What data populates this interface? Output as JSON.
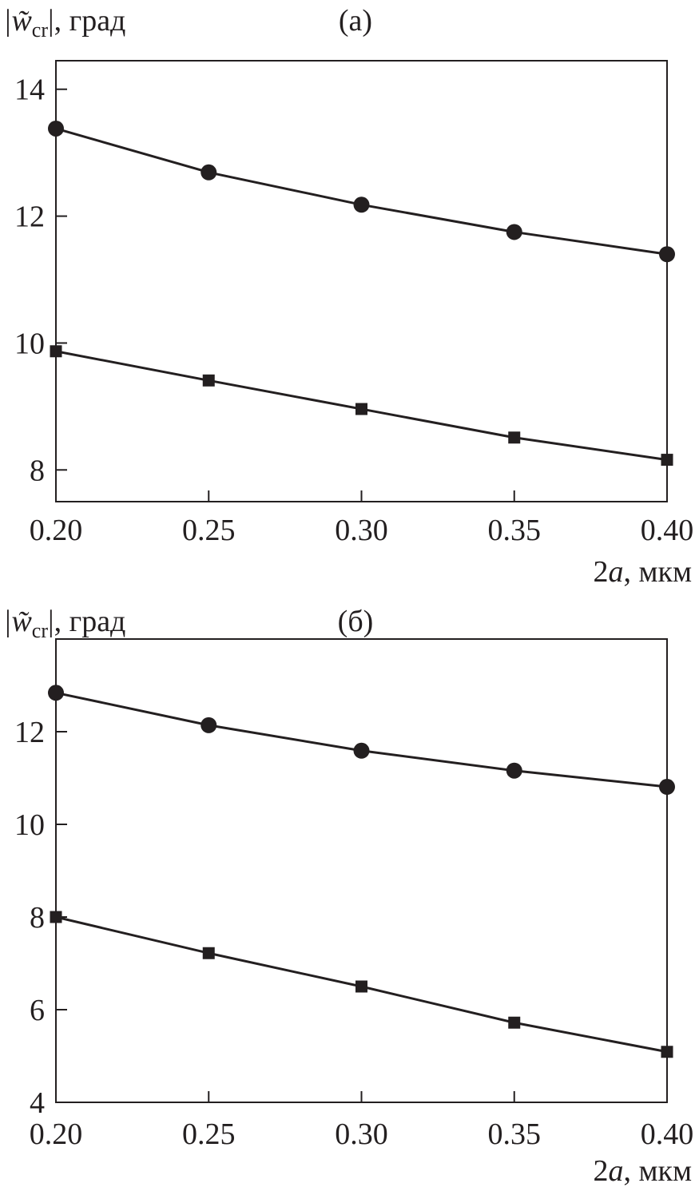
{
  "chart_data": [
    {
      "type": "line",
      "title": "(а)",
      "ylabel_main": "|w̃",
      "ylabel_sub": "cr",
      "ylabel_tail": "|, град",
      "xlabel_num": "2",
      "xlabel_var": "a",
      "xlabel_unit": ", мкм",
      "x": [
        0.2,
        0.25,
        0.3,
        0.35,
        0.4
      ],
      "xtick_labels": [
        "0.20",
        "0.25",
        "0.30",
        "0.35",
        "0.40"
      ],
      "yticks": [
        8,
        10,
        12,
        14
      ],
      "ytick_labels": [
        "8",
        "10",
        "12",
        "14"
      ],
      "xlim": [
        0.2,
        0.4
      ],
      "ylim": [
        7.5,
        14.45
      ],
      "grid": false,
      "series": [
        {
          "name": "circles",
          "marker": "circle",
          "values": [
            13.38,
            12.69,
            12.18,
            11.75,
            11.4
          ]
        },
        {
          "name": "squares",
          "marker": "square",
          "values": [
            9.87,
            9.41,
            8.96,
            8.51,
            8.16
          ]
        }
      ]
    },
    {
      "type": "line",
      "title": "(б)",
      "ylabel_main": "|w̃",
      "ylabel_sub": "cr",
      "ylabel_tail": "|, град",
      "xlabel_num": "2",
      "xlabel_var": "a",
      "xlabel_unit": ", мкм",
      "x": [
        0.2,
        0.25,
        0.3,
        0.35,
        0.4
      ],
      "xtick_labels": [
        "0.20",
        "0.25",
        "0.30",
        "0.35",
        "0.40"
      ],
      "yticks": [
        4,
        6,
        8,
        10,
        12
      ],
      "ytick_labels": [
        "4",
        "6",
        "8",
        "10",
        "12"
      ],
      "xlim": [
        0.2,
        0.4
      ],
      "ylim": [
        4,
        14
      ],
      "grid": false,
      "series": [
        {
          "name": "circles",
          "marker": "circle",
          "values": [
            12.84,
            12.14,
            11.59,
            11.16,
            10.81
          ]
        },
        {
          "name": "squares",
          "marker": "square",
          "values": [
            8.0,
            7.22,
            6.5,
            5.72,
            5.09
          ]
        }
      ]
    }
  ]
}
